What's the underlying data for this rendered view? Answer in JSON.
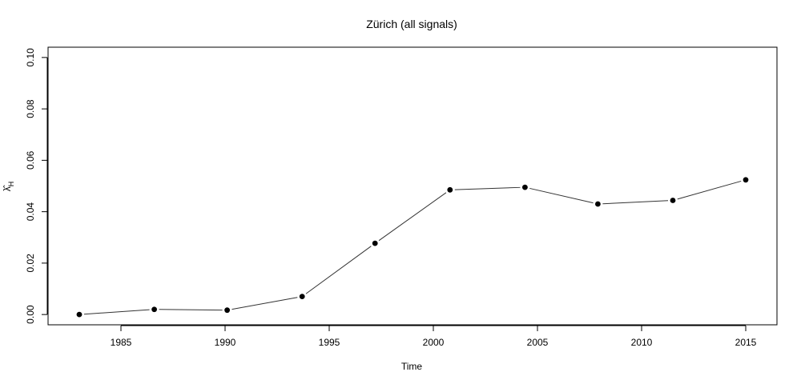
{
  "chart_data": {
    "type": "line",
    "title": "Zürich (all signals)",
    "xlabel": "Time",
    "ylabel": "λ̂_H",
    "ylabel_symbol": "λ̂",
    "ylabel_subscript": "H",
    "xlim": [
      1981.5,
      2016.5
    ],
    "ylim": [
      -0.004,
      0.104
    ],
    "xticks": [
      1985,
      1990,
      1995,
      2000,
      2005,
      2010,
      2015
    ],
    "yticks": [
      0.0,
      0.02,
      0.04,
      0.06,
      0.08,
      0.1
    ],
    "ytick_labels": [
      "0.00",
      "0.02",
      "0.04",
      "0.06",
      "0.08",
      "0.10"
    ],
    "grid": false,
    "legend": "none",
    "series": [
      {
        "x": [
          1983.0,
          1986.6,
          1990.1,
          1993.7,
          1997.2,
          2000.8,
          2004.4,
          2007.9,
          2011.5,
          2015.0
        ],
        "values": [
          0.0,
          0.002,
          0.0017,
          0.007,
          0.0277,
          0.0485,
          0.0495,
          0.043,
          0.0444,
          0.0524
        ]
      }
    ],
    "colors": {
      "line": "#333333",
      "marker": "#000000",
      "frame": "#000000"
    }
  }
}
